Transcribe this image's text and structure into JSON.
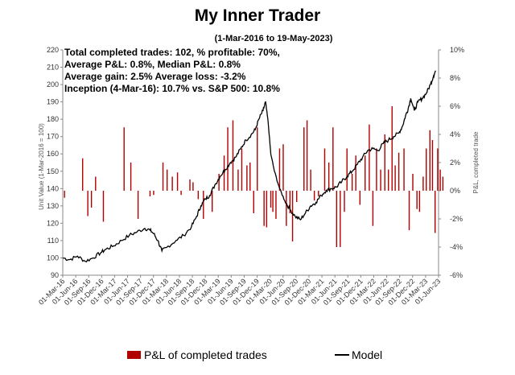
{
  "chart_data": {
    "type": "bar+line",
    "title": "My Inner Trader",
    "subtitle": "(1-Mar-2016 to 19-May-2023)",
    "stats_lines": [
      "Total completed trades: 102, % profitable: 70%,",
      "Average P&L: 0.8%, Median P&L: 0.8%",
      "Average gain: 2.5% Average loss: -3.2%",
      "Inception (4-Mar-16): 10.7% vs. S&P 500: 10.8%"
    ],
    "ylabel_left": "Unit Value (1-Mar-2016 = 100)",
    "ylabel_right": "P&L, completed trade",
    "ylim_left": [
      90,
      220
    ],
    "yticks_left": [
      "90",
      "100",
      "110",
      "120",
      "130",
      "140",
      "150",
      "160",
      "170",
      "180",
      "190",
      "200",
      "210",
      "220"
    ],
    "ylim_right": [
      -6,
      10
    ],
    "yticks_right": [
      "-6%",
      "-4%",
      "-2%",
      "0%",
      "2%",
      "4%",
      "6%",
      "8%",
      "10%"
    ],
    "x_start": "2016-03-01",
    "x_end": "2023-06-01",
    "xtick_labels": [
      "01-Mar-16",
      "01-Jun-16",
      "01-Sep-16",
      "01-Dec-16",
      "01-Mar-17",
      "01-Jun-17",
      "01-Sep-17",
      "01-Dec-17",
      "01-Mar-18",
      "01-Jun-18",
      "01-Sep-18",
      "01-Dec-18",
      "01-Mar-19",
      "01-Jun-19",
      "01-Sep-19",
      "01-Dec-19",
      "01-Mar-20",
      "01-Jun-20",
      "01-Sep-20",
      "01-Dec-20",
      "01-Mar-21",
      "01-Jun-21",
      "01-Sep-21",
      "01-Dec-21",
      "01-Mar-22",
      "01-Jun-22",
      "01-Sep-22",
      "01-Dec-22",
      "01-Mar-23",
      "01-Jun-23"
    ],
    "series": [
      {
        "name": "Model",
        "type": "line",
        "axis": "left",
        "color": "#000000",
        "points": [
          [
            2016.17,
            100
          ],
          [
            2016.3,
            99
          ],
          [
            2016.45,
            101
          ],
          [
            2016.6,
            98
          ],
          [
            2016.75,
            100
          ],
          [
            2016.9,
            103
          ],
          [
            2017.0,
            105
          ],
          [
            2017.15,
            107
          ],
          [
            2017.3,
            110
          ],
          [
            2017.45,
            113
          ],
          [
            2017.6,
            115
          ],
          [
            2017.75,
            117
          ],
          [
            2017.85,
            116
          ],
          [
            2017.92,
            114
          ],
          [
            2018.0,
            110
          ],
          [
            2018.08,
            104
          ],
          [
            2018.17,
            106
          ],
          [
            2018.35,
            110
          ],
          [
            2018.5,
            113
          ],
          [
            2018.65,
            118
          ],
          [
            2018.75,
            124
          ],
          [
            2018.83,
            130
          ],
          [
            2018.92,
            134
          ],
          [
            2019.0,
            136
          ],
          [
            2019.1,
            142
          ],
          [
            2019.2,
            147
          ],
          [
            2019.3,
            151
          ],
          [
            2019.4,
            155
          ],
          [
            2019.5,
            158
          ],
          [
            2019.6,
            163
          ],
          [
            2019.7,
            168
          ],
          [
            2019.8,
            171
          ],
          [
            2019.88,
            174
          ],
          [
            2019.95,
            180
          ],
          [
            2020.03,
            185
          ],
          [
            2020.08,
            190
          ],
          [
            2020.13,
            178
          ],
          [
            2020.18,
            160
          ],
          [
            2020.25,
            150
          ],
          [
            2020.35,
            140
          ],
          [
            2020.45,
            133
          ],
          [
            2020.55,
            128
          ],
          [
            2020.65,
            124
          ],
          [
            2020.75,
            122
          ],
          [
            2020.85,
            126
          ],
          [
            2020.95,
            130
          ],
          [
            2021.05,
            132
          ],
          [
            2021.15,
            136
          ],
          [
            2021.25,
            139
          ],
          [
            2021.35,
            140
          ],
          [
            2021.45,
            141
          ],
          [
            2021.55,
            144
          ],
          [
            2021.65,
            147
          ],
          [
            2021.75,
            150
          ],
          [
            2021.85,
            154
          ],
          [
            2021.95,
            158
          ],
          [
            2022.05,
            162
          ],
          [
            2022.15,
            163
          ],
          [
            2022.25,
            162
          ],
          [
            2022.35,
            166
          ],
          [
            2022.45,
            168
          ],
          [
            2022.55,
            170
          ],
          [
            2022.65,
            172
          ],
          [
            2022.72,
            176
          ],
          [
            2022.78,
            182
          ],
          [
            2022.83,
            186
          ],
          [
            2022.88,
            192
          ],
          [
            2022.95,
            185
          ],
          [
            2023.02,
            190
          ],
          [
            2023.1,
            192
          ],
          [
            2023.18,
            195
          ],
          [
            2023.26,
            200
          ],
          [
            2023.32,
            205
          ],
          [
            2023.36,
            208
          ]
        ]
      },
      {
        "name": "P&L of completed trades",
        "type": "bar",
        "axis": "right",
        "color": "#b00000",
        "points": [
          [
            2016.2,
            -0.5
          ],
          [
            2016.55,
            2.3
          ],
          [
            2016.65,
            -1.8
          ],
          [
            2016.72,
            -1.2
          ],
          [
            2016.8,
            1.0
          ],
          [
            2016.95,
            -2.2
          ],
          [
            2017.35,
            4.5
          ],
          [
            2017.48,
            2.0
          ],
          [
            2017.62,
            -2.0
          ],
          [
            2017.85,
            -0.4
          ],
          [
            2017.92,
            -0.3
          ],
          [
            2018.1,
            2.0
          ],
          [
            2018.18,
            1.5
          ],
          [
            2018.28,
            1.0
          ],
          [
            2018.38,
            1.3
          ],
          [
            2018.45,
            -0.3
          ],
          [
            2018.62,
            0.8
          ],
          [
            2018.68,
            0.6
          ],
          [
            2018.78,
            -0.6
          ],
          [
            2018.88,
            -2.0
          ],
          [
            2019.05,
            -1.5
          ],
          [
            2019.18,
            1.2
          ],
          [
            2019.28,
            2.5
          ],
          [
            2019.35,
            4.5
          ],
          [
            2019.45,
            5.0
          ],
          [
            2019.55,
            1.5
          ],
          [
            2019.62,
            3.0
          ],
          [
            2019.72,
            1.8
          ],
          [
            2019.78,
            2.0
          ],
          [
            2019.85,
            -1.6
          ],
          [
            2019.92,
            4.5
          ],
          [
            2020.05,
            -2.5
          ],
          [
            2020.1,
            -2.6
          ],
          [
            2020.18,
            -1.2
          ],
          [
            2020.22,
            -1.5
          ],
          [
            2020.28,
            -2.0
          ],
          [
            2020.35,
            3.0
          ],
          [
            2020.42,
            3.3
          ],
          [
            2020.48,
            -2.5
          ],
          [
            2020.55,
            -1.6
          ],
          [
            2020.6,
            -3.6
          ],
          [
            2020.68,
            -0.8
          ],
          [
            2020.82,
            4.5
          ],
          [
            2020.88,
            5.0
          ],
          [
            2020.95,
            1.5
          ],
          [
            2021.02,
            -0.7
          ],
          [
            2021.1,
            -0.4
          ],
          [
            2021.22,
            3.0
          ],
          [
            2021.3,
            2.0
          ],
          [
            2021.38,
            4.5
          ],
          [
            2021.45,
            -4.0
          ],
          [
            2021.52,
            -4.0
          ],
          [
            2021.6,
            -1.5
          ],
          [
            2021.65,
            3.0
          ],
          [
            2021.75,
            1.2
          ],
          [
            2021.82,
            2.5
          ],
          [
            2021.9,
            -1.0
          ],
          [
            2022.0,
            2.5
          ],
          [
            2022.08,
            4.7
          ],
          [
            2022.15,
            -2.5
          ],
          [
            2022.22,
            3.0
          ],
          [
            2022.3,
            1.5
          ],
          [
            2022.38,
            4.0
          ],
          [
            2022.45,
            1.5
          ],
          [
            2022.52,
            6.0
          ],
          [
            2022.58,
            1.8
          ],
          [
            2022.65,
            2.7
          ],
          [
            2022.75,
            3.0
          ],
          [
            2022.85,
            -2.8
          ],
          [
            2022.92,
            1.2
          ],
          [
            2023.0,
            -1.3
          ],
          [
            2023.05,
            -1.5
          ],
          [
            2023.12,
            1.0
          ],
          [
            2023.18,
            3.0
          ],
          [
            2023.25,
            4.3
          ],
          [
            2023.3,
            3.6
          ],
          [
            2023.35,
            -3.0
          ],
          [
            2023.4,
            3.0
          ],
          [
            2023.45,
            1.5
          ],
          [
            2023.5,
            1.0
          ]
        ]
      }
    ],
    "legend": {
      "bar_label": "P&L of completed trades",
      "line_label": "Model"
    }
  }
}
